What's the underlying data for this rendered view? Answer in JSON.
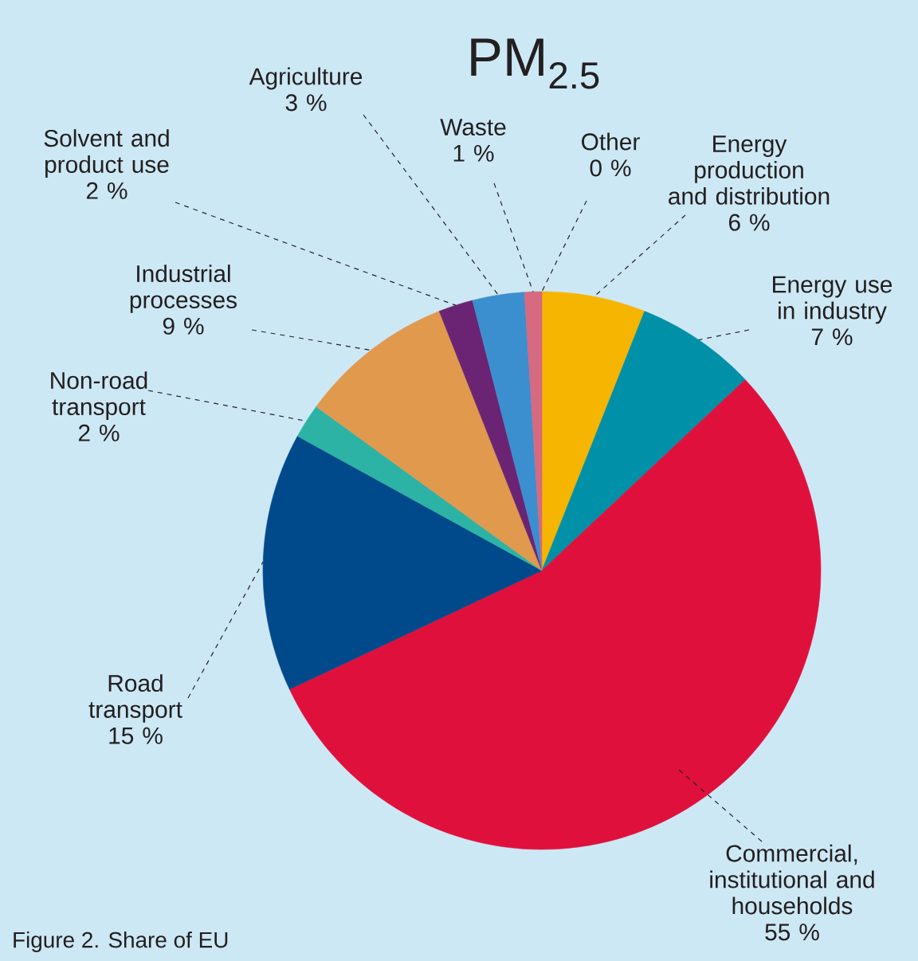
{
  "chart_data": {
    "type": "pie",
    "title": "PM$_{2.5}$",
    "categories": [
      "Other",
      "Energy production and distribution",
      "Energy use in industry",
      "Commercial, institutional and households",
      "Road transport",
      "Non-road transport",
      "Industrial processes",
      "Solvent and product use",
      "Agriculture",
      "Waste"
    ],
    "values": [
      0,
      6,
      7,
      55,
      15,
      2,
      9,
      2,
      3,
      1
    ],
    "value_labels": [
      "0 %",
      "6 %",
      "7 %",
      "55 %",
      "15 %",
      "2 %",
      "9 %",
      "2 %",
      "3 %",
      "1 %"
    ],
    "colors": [
      "#808080",
      "#f6b500",
      "#0090a8",
      "#e0103c",
      "#004a8c",
      "#2db3a5",
      "#e0994d",
      "#6b2474",
      "#3b8fcf",
      "#d66a80"
    ],
    "annotations": [
      "Figure 2. Share of EU"
    ]
  }
}
